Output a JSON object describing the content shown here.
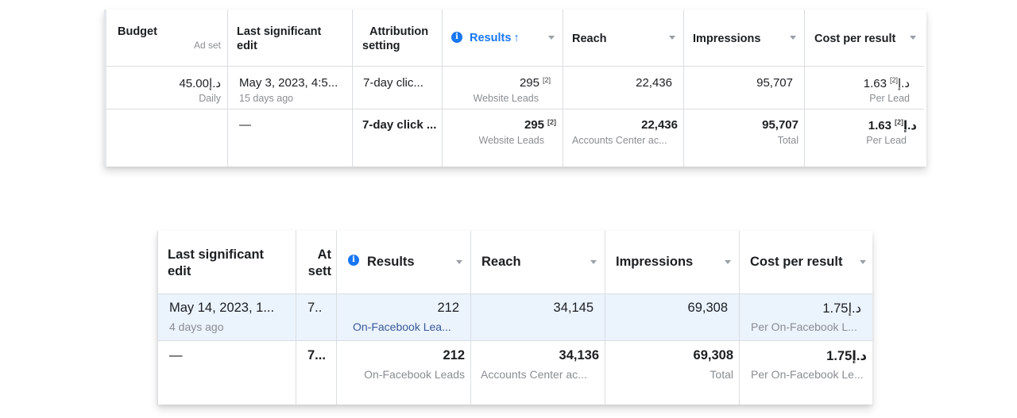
{
  "table1": {
    "headers": {
      "budget": {
        "title": "Budget",
        "sub": "Ad set"
      },
      "last_edit": {
        "title_line1": "Last significant",
        "title_line2": "edit"
      },
      "attribution": {
        "title_line1": "Attribution",
        "title_line2": "setting"
      },
      "results": {
        "title": "Results",
        "sort": "↑"
      },
      "reach": {
        "title": "Reach"
      },
      "impressions": {
        "title": "Impressions"
      },
      "cost_per_result": {
        "title": "Cost per result"
      }
    },
    "row": {
      "budget_value": "45.00د.إ",
      "budget_sub": "Daily",
      "last_edit_value": "May 3, 2023, 4:5...",
      "last_edit_sub": "15 days ago",
      "attribution_value": "7-day clic...",
      "results_value": "295",
      "results_fn": "[2]",
      "results_sub": "Website Leads",
      "reach_value": "22,436",
      "impressions_value": "95,707",
      "cost_value": "1.63د.إ",
      "cost_fn": "[2]",
      "cost_sub": "Per Lead"
    },
    "total": {
      "last_edit_value": "—",
      "attribution_value": "7-day click ...",
      "results_value": "295",
      "results_fn": "[2]",
      "results_sub": "Website Leads",
      "reach_value": "22,436",
      "reach_sub": "Accounts Center ac...",
      "impressions_value": "95,707",
      "impressions_sub": "Total",
      "cost_value": "1.63د.إ",
      "cost_fn": "[2]",
      "cost_sub": "Per Lead"
    }
  },
  "table2": {
    "headers": {
      "last_edit": {
        "title_line1": "Last significant",
        "title_line2": "edit"
      },
      "attribution": {
        "title_line1": "At",
        "title_line2": "sett"
      },
      "results": {
        "title": "Results"
      },
      "reach": {
        "title": "Reach"
      },
      "impressions": {
        "title": "Impressions"
      },
      "cost_per_result": {
        "title": "Cost per result"
      }
    },
    "row": {
      "last_edit_value": "May 14, 2023, 1...",
      "last_edit_sub": "4 days ago",
      "attribution_value": "7..",
      "results_value": "212",
      "results_sub": "On-Facebook Lea...",
      "reach_value": "34,145",
      "impressions_value": "69,308",
      "cost_value": "1.75د.إ",
      "cost_sub": "Per On-Facebook L..."
    },
    "total": {
      "last_edit_value": "—",
      "attribution_value": "7...",
      "results_value": "212",
      "results_sub": "On-Facebook Leads",
      "reach_value": "34,136",
      "reach_sub": "Accounts Center ac...",
      "impressions_value": "69,308",
      "impressions_sub": "Total",
      "cost_value": "1.75د.إ",
      "cost_sub": "Per On-Facebook Le..."
    }
  },
  "colors": {
    "accent": "#1877f2",
    "row_highlight": "#ebf3fd",
    "border": "#dadde1",
    "muted": "#8a8d91"
  },
  "icons": {
    "info": "info-icon",
    "sort_caret": "chevron-down-icon"
  }
}
